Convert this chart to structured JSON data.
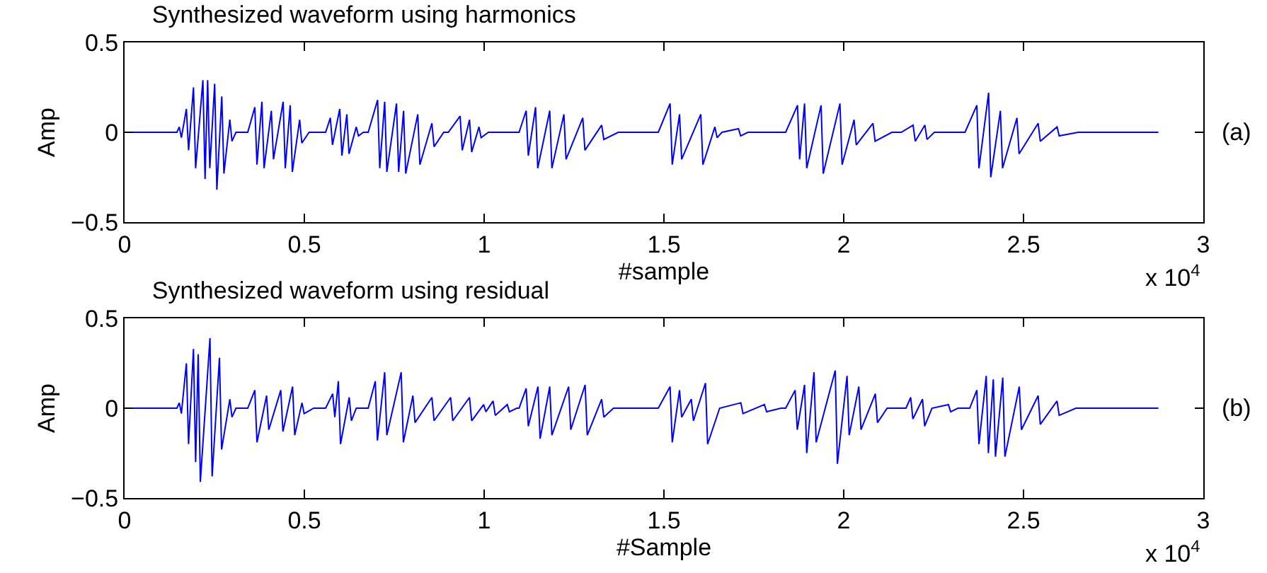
{
  "chart_data": [
    {
      "type": "line",
      "title": "Synthesized waveform using harmonics",
      "xlabel": "#sample",
      "ylabel": "Amp",
      "annotations": [
        "(a)",
        "x 10$^{4}$"
      ],
      "xlim": [
        0,
        3
      ],
      "xticks": [
        0,
        0.5,
        1,
        1.5,
        2,
        2.5,
        3
      ],
      "ylim": [
        -0.5,
        0.5
      ],
      "yticks": [
        {
          "value": -0.5,
          "label": "−0.5"
        },
        {
          "value": 0,
          "label": "0"
        },
        {
          "value": 0.5,
          "label": "0.5"
        }
      ],
      "marker": "none",
      "line_style": "solid",
      "series": [
        {
          "color": "#0000ff",
          "x": [
            0,
            0.1457,
            0.152,
            0.158,
            0.1719,
            0.178,
            0.1916,
            0.1976,
            0.2178,
            0.2238,
            0.231,
            0.237,
            0.2506,
            0.2566,
            0.2703,
            0.2763,
            0.2927,
            0.2987,
            0.3097,
            0.3425,
            0.3622,
            0.3682,
            0.3819,
            0.3879,
            0.4081,
            0.4141,
            0.4409,
            0.4469,
            0.4606,
            0.4666,
            0.4869,
            0.4929,
            0.5131,
            0.5591,
            0.5722,
            0.5782,
            0.5984,
            0.6044,
            0.6181,
            0.6241,
            0.6444,
            0.6504,
            0.664,
            0.6775,
            0.7037,
            0.7097,
            0.7234,
            0.7294,
            0.7562,
            0.7622,
            0.7759,
            0.7819,
            0.8153,
            0.8213,
            0.8547,
            0.8607,
            0.8875,
            0.9003,
            0.9331,
            0.9391,
            0.9593,
            0.9653,
            0.9856,
            0.9916,
            1.0118,
            1.0971,
            1.1168,
            1.1228,
            1.143,
            1.149,
            1.1824,
            1.1884,
            1.2218,
            1.2278,
            1.2743,
            1.2803,
            1.3268,
            1.3328,
            1.3727,
            1.4843,
            1.5171,
            1.5231,
            1.5433,
            1.5493,
            1.6024,
            1.6084,
            1.6417,
            1.6477,
            1.6614,
            1.7073,
            1.7133,
            1.7336,
            1.8386,
            1.8714,
            1.8774,
            1.8911,
            1.8971,
            1.937,
            1.943,
            1.9895,
            1.9955,
            2.0288,
            2.0348,
            2.0813,
            2.0873,
            2.1338,
            2.1601,
            2.1929,
            2.1989,
            2.2257,
            2.2317,
            2.252,
            2.3373,
            2.3701,
            2.3761,
            2.4029,
            2.4089,
            2.4357,
            2.4417,
            2.4817,
            2.4877,
            2.5407,
            2.5467,
            2.5932,
            2.5992,
            2.6523,
            2.8752
          ],
          "values": [
            0,
            0,
            0.03,
            -0.03,
            0.13,
            -0.1,
            0.25,
            -0.2,
            0.29,
            -0.26,
            0.29,
            -0.2,
            0.27,
            -0.32,
            0.2,
            -0.23,
            0.07,
            -0.05,
            0,
            0,
            0.14,
            -0.18,
            0.17,
            -0.2,
            0.12,
            -0.15,
            0.17,
            -0.2,
            0.15,
            -0.22,
            0.07,
            -0.06,
            0,
            0,
            0.08,
            -0.07,
            0.13,
            -0.13,
            0.1,
            -0.12,
            0.03,
            -0.02,
            0,
            0,
            0.18,
            -0.2,
            0.17,
            -0.22,
            0.16,
            -0.22,
            0.12,
            -0.23,
            0.1,
            -0.18,
            0.05,
            -0.08,
            0,
            0,
            0.09,
            -0.1,
            0.07,
            -0.11,
            0.03,
            -0.03,
            0,
            0,
            0.12,
            -0.13,
            0.14,
            -0.2,
            0.12,
            -0.2,
            0.1,
            -0.15,
            0.08,
            -0.1,
            0.04,
            -0.04,
            0,
            0,
            0.16,
            -0.18,
            0.1,
            -0.15,
            0.1,
            -0.18,
            0.03,
            -0.03,
            0,
            0.02,
            -0.02,
            0,
            0,
            0.15,
            -0.15,
            0.16,
            -0.2,
            0.15,
            -0.23,
            0.16,
            -0.18,
            0.07,
            -0.07,
            0.05,
            -0.05,
            0,
            0,
            0.04,
            -0.05,
            0.04,
            -0.04,
            0,
            0,
            0.15,
            -0.2,
            0.22,
            -0.25,
            0.12,
            -0.2,
            0.08,
            -0.12,
            0.05,
            -0.05,
            0.03,
            -0.02,
            0,
            0
          ]
        }
      ]
    },
    {
      "type": "line",
      "title": "Synthesized waveform using residual",
      "xlabel": "#Sample",
      "ylabel": "Amp",
      "annotations": [
        "(b)",
        "x 10$^{4}$"
      ],
      "xlim": [
        0,
        3
      ],
      "xticks": [
        0,
        0.5,
        1,
        1.5,
        2,
        2.5,
        3
      ],
      "ylim": [
        -0.5,
        0.5
      ],
      "yticks": [
        {
          "value": -0.5,
          "label": "−0.5"
        },
        {
          "value": 0,
          "label": "0"
        },
        {
          "value": 0.5,
          "label": "0.5"
        }
      ],
      "marker": "none",
      "line_style": "solid",
      "series": [
        {
          "color": "#0000ff",
          "x": [
            0,
            0.1457,
            0.152,
            0.158,
            0.1719,
            0.1779,
            0.1916,
            0.1976,
            0.2047,
            0.2107,
            0.2375,
            0.2435,
            0.2638,
            0.2698,
            0.2927,
            0.2987,
            0.3097,
            0.3425,
            0.3622,
            0.3682,
            0.395,
            0.401,
            0.4344,
            0.4404,
            0.4672,
            0.4732,
            0.4934,
            0.4994,
            0.5262,
            0.5591,
            0.5787,
            0.5847,
            0.5945,
            0.6005,
            0.6247,
            0.6307,
            0.6444,
            0.6775,
            0.6972,
            0.7032,
            0.7234,
            0.7294,
            0.7693,
            0.7753,
            0.8018,
            0.8078,
            0.8547,
            0.8607,
            0.9068,
            0.9128,
            0.9593,
            0.9653,
            0.9987,
            1.0047,
            1.0249,
            1.0309,
            1.0643,
            1.0703,
            1.0906,
            1.0971,
            1.1168,
            1.1228,
            1.1496,
            1.1556,
            1.1824,
            1.1884,
            1.2349,
            1.2409,
            1.2808,
            1.2868,
            1.3268,
            1.3328,
            1.3596,
            1.4843,
            1.5171,
            1.5231,
            1.5433,
            1.5493,
            1.5761,
            1.5821,
            1.6155,
            1.6215,
            1.6549,
            1.7139,
            1.7199,
            1.7795,
            1.7855,
            1.8255,
            1.8386,
            1.8648,
            1.8708,
            1.8911,
            1.8971,
            1.9173,
            1.9233,
            1.9764,
            1.9824,
            2.0092,
            2.0152,
            2.042,
            2.048,
            2.0879,
            2.0939,
            2.1207,
            2.1732,
            2.1863,
            2.1923,
            2.2191,
            2.2251,
            2.2454,
            2.2913,
            2.2973,
            2.3176,
            2.3504,
            2.3701,
            2.3761,
            2.3963,
            2.4023,
            2.416,
            2.422,
            2.4423,
            2.4483,
            2.4882,
            2.4942,
            2.5407,
            2.5467,
            2.5932,
            2.5992,
            2.6457,
            2.8752
          ],
          "values": [
            0,
            0,
            0.03,
            -0.03,
            0.25,
            -0.2,
            0.33,
            -0.3,
            0.3,
            -0.41,
            0.39,
            -0.38,
            0.28,
            -0.23,
            0.05,
            -0.05,
            0,
            0,
            0.1,
            -0.19,
            0.07,
            -0.12,
            0.1,
            -0.13,
            0.12,
            -0.15,
            0.03,
            -0.03,
            0,
            0,
            0.08,
            -0.05,
            0.15,
            -0.2,
            0.06,
            -0.07,
            0,
            0,
            0.15,
            -0.18,
            0.2,
            -0.15,
            0.2,
            -0.19,
            0.07,
            -0.08,
            0.06,
            -0.07,
            0.06,
            -0.07,
            0.06,
            -0.07,
            0.02,
            -0.02,
            0.04,
            -0.04,
            0.02,
            -0.02,
            0,
            0,
            0.11,
            -0.1,
            0.12,
            -0.17,
            0.12,
            -0.15,
            0.12,
            -0.12,
            0.13,
            -0.15,
            0.05,
            -0.05,
            0,
            0,
            0.12,
            -0.19,
            0.1,
            -0.05,
            0.05,
            -0.07,
            0.14,
            -0.2,
            0,
            0.03,
            -0.03,
            0.02,
            -0.02,
            0,
            0,
            0.1,
            -0.12,
            0.13,
            -0.25,
            0.2,
            -0.19,
            0.21,
            -0.31,
            0.18,
            -0.15,
            0.12,
            -0.12,
            0.08,
            -0.08,
            0,
            0,
            0.06,
            -0.06,
            0.05,
            -0.1,
            0,
            0.02,
            -0.02,
            0,
            0,
            0.1,
            -0.2,
            0.18,
            -0.25,
            0.16,
            -0.27,
            0.17,
            -0.27,
            0.12,
            -0.12,
            0.07,
            -0.09,
            0.04,
            -0.04,
            0,
            0
          ]
        }
      ]
    }
  ]
}
